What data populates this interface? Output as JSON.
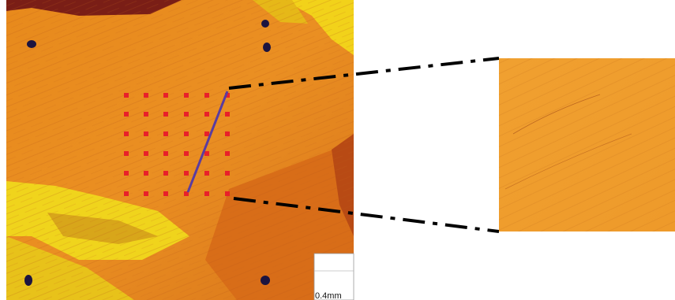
{
  "scale_bar": {
    "label": "0.4mm"
  }
}
